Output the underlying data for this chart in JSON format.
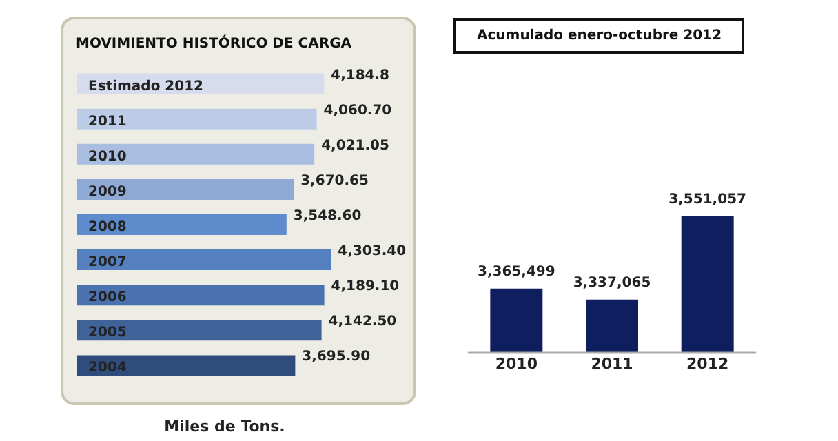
{
  "chart_data": [
    {
      "type": "bar",
      "orientation": "horizontal",
      "title": "MOVIMIENTO HISTÓRICO DE CARGA",
      "xlabel": "Miles de Tons.",
      "categories": [
        "Estimado 2012",
        "2011",
        "2010",
        "2009",
        "2008",
        "2007",
        "2006",
        "2005",
        "2004"
      ],
      "values": [
        4184.8,
        4060.7,
        4021.05,
        3670.65,
        3548.6,
        4303.4,
        4189.1,
        4142.5,
        3695.9
      ],
      "value_labels": [
        "4,184.8",
        "4,060.70",
        "4,021.05",
        "3,670.65",
        "3,548.60",
        "4,303.40",
        "4,189.10",
        "4,142.50",
        "3,695.90"
      ],
      "colors": [
        "#d6dcee",
        "#bccbe6",
        "#a9bde0",
        "#8fa9d5",
        "#5d8bcb",
        "#5480c0",
        "#4a72b0",
        "#3f6299",
        "#2f4c7c"
      ],
      "tick_labels": "y",
      "grid": false
    },
    {
      "type": "bar",
      "title": "Acumulado enero-octubre 2012",
      "categories": [
        "2010",
        "2011",
        "2012"
      ],
      "values": [
        3365499,
        3337065,
        3551057
      ],
      "value_labels": [
        "3,365,499",
        "3,337,065",
        "3,551,057"
      ],
      "color": "#0f1e5e",
      "ylim": [
        3200000,
        3551057
      ],
      "tick_labels": "x",
      "grid": false
    }
  ]
}
